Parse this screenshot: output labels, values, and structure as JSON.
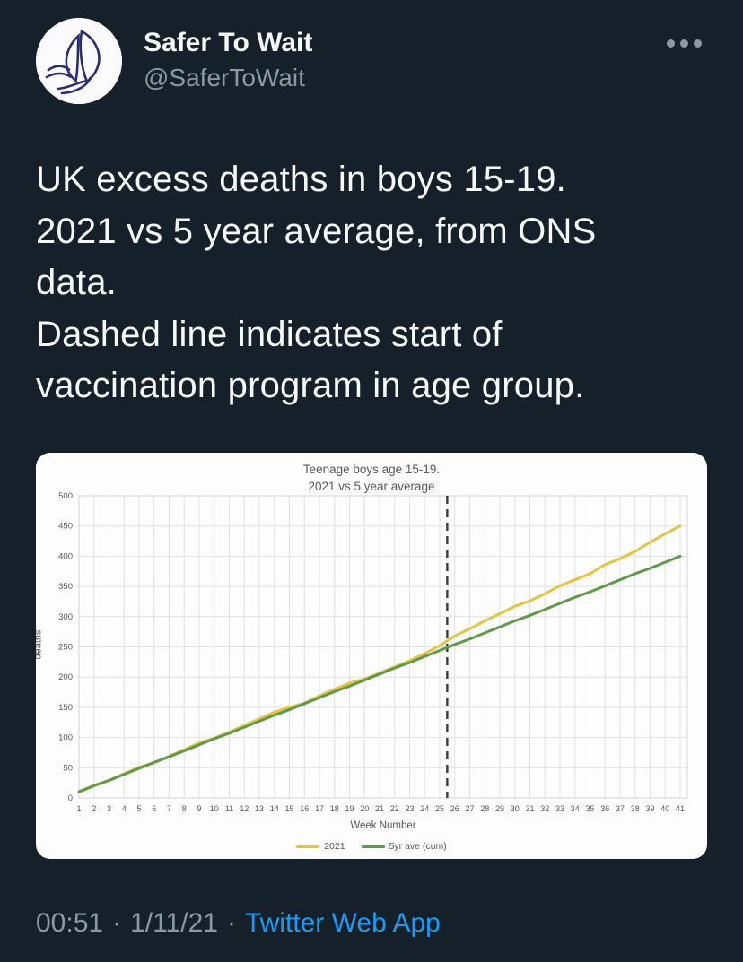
{
  "tweet": {
    "author": {
      "display_name": "Safer To Wait",
      "handle": "@SaferToWait"
    },
    "text_lines": [
      "UK excess deaths in boys 15-19.",
      "2021 vs 5 year average, from ONS",
      "data.",
      "Dashed line indicates start of",
      "vaccination program in age group."
    ],
    "footer": {
      "time": "00:51",
      "dot": "·",
      "date": "1/11/21",
      "source": "Twitter Web App"
    }
  },
  "colors": {
    "background": "#15202b",
    "text_primary": "#f7f9f9",
    "text_secondary": "#8b98a5",
    "link_blue": "#1d9bf0",
    "card_background": "#fdfdfe",
    "chart_text": "#595959",
    "gridline": "#e2e2e2",
    "vline": "#3b3b3b"
  },
  "chart_data": {
    "type": "line",
    "title_lines": [
      "Teenage boys age 15-19.",
      "2021 vs 5 year average"
    ],
    "xlabel": "Week Number",
    "ylabel": "deaths",
    "x": [
      1,
      2,
      3,
      4,
      5,
      6,
      7,
      8,
      9,
      10,
      11,
      12,
      13,
      14,
      15,
      16,
      17,
      18,
      19,
      20,
      21,
      22,
      23,
      24,
      25,
      26,
      27,
      28,
      29,
      30,
      31,
      32,
      33,
      34,
      35,
      36,
      37,
      38,
      39,
      40,
      41
    ],
    "x_range": [
      1,
      41
    ],
    "ylim": [
      0,
      500
    ],
    "ytick_step": 50,
    "grid": true,
    "legend_position": "bottom",
    "vline": {
      "x": 25.5,
      "style": "dashed",
      "color": "#3b3b3b"
    },
    "series": [
      {
        "name": "2021",
        "color": "#e2c546",
        "values": [
          11,
          21,
          29,
          40,
          51,
          58,
          69,
          80,
          91,
          99,
          109,
          120,
          131,
          142,
          150,
          157,
          169,
          180,
          190,
          197,
          207,
          217,
          227,
          239,
          252,
          268,
          280,
          293,
          305,
          317,
          326,
          338,
          351,
          361,
          371,
          386,
          396,
          408,
          423,
          437,
          450
        ]
      },
      {
        "name": "5yr ave (cum)",
        "color": "#5f9a4c",
        "values": [
          10,
          20,
          29,
          39,
          49,
          59,
          68,
          78,
          88,
          98,
          107,
          117,
          127,
          137,
          146,
          156,
          166,
          176,
          185,
          195,
          205,
          215,
          224,
          234,
          244,
          254,
          263,
          273,
          283,
          293,
          302,
          312,
          322,
          332,
          341,
          351,
          361,
          371,
          380,
          390,
          400
        ]
      }
    ]
  }
}
